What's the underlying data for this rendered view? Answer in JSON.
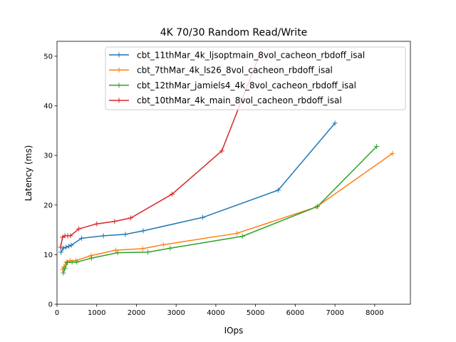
{
  "chart_data": {
    "type": "line",
    "title": "4K 70/30  Random Read/Write",
    "xlabel": "IOps",
    "ylabel": "Latency (ms)",
    "xlim": [
      0,
      8900
    ],
    "ylim": [
      0,
      53
    ],
    "xticks": [
      0,
      1000,
      2000,
      3000,
      4000,
      5000,
      6000,
      7000,
      8000
    ],
    "yticks": [
      0,
      10,
      20,
      30,
      40,
      50
    ],
    "grid": false,
    "legend_position": "top-right",
    "series": [
      {
        "name": "cbt_11thMar_4k_ljsoptmain_8vol_cacheon_rbdoff_isal",
        "color": "#1f77b4",
        "x": [
          100,
          160,
          230,
          300,
          360,
          620,
          1170,
          1720,
          2170,
          3670,
          5570,
          7000
        ],
        "y": [
          10.5,
          11.3,
          11.5,
          11.7,
          11.9,
          13.3,
          13.8,
          14.1,
          14.8,
          17.5,
          23.0,
          36.5
        ]
      },
      {
        "name": "cbt_7thMar_4k_ls26_8vol_cacheon_rbdoff_isal",
        "color": "#ff7f0e",
        "x": [
          140,
          170,
          230,
          330,
          470,
          860,
          1480,
          2160,
          2680,
          4530,
          6530,
          8450
        ],
        "y": [
          7.0,
          7.5,
          8.5,
          8.8,
          8.8,
          9.8,
          10.9,
          11.2,
          12.0,
          14.3,
          19.6,
          30.4
        ]
      },
      {
        "name": "cbt_12thMar_jamiels4_4k_8vol_cacheon_rbdoff_isal",
        "color": "#2ca02c",
        "x": [
          160,
          200,
          260,
          380,
          500,
          870,
          1530,
          2290,
          2850,
          4670,
          6560,
          8050
        ],
        "y": [
          6.3,
          7.2,
          8.4,
          8.5,
          8.5,
          9.3,
          10.4,
          10.5,
          11.3,
          13.7,
          19.7,
          31.8
        ]
      },
      {
        "name": "cbt_10thMar_4k_main_8vol_cacheon_rbdoff_isal",
        "color": "#d62728",
        "x": [
          90,
          140,
          200,
          270,
          340,
          550,
          1000,
          1450,
          1860,
          2900,
          4150,
          5100
        ],
        "y": [
          11.5,
          13.5,
          13.8,
          13.8,
          13.8,
          15.2,
          16.2,
          16.7,
          17.4,
          22.2,
          30.9,
          50.3
        ]
      }
    ]
  }
}
